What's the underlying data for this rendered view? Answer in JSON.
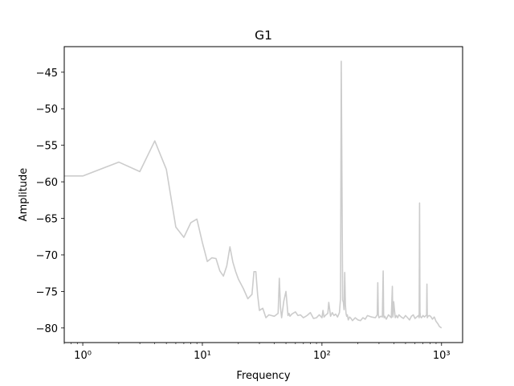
{
  "chart_data": {
    "type": "line",
    "title": "G1",
    "xlabel": "Frequency",
    "ylabel": "Amplitude",
    "xscale": "log",
    "xlim": [
      0.7,
      1500
    ],
    "ylim": [
      -82.0,
      -41.5
    ],
    "grid": false,
    "line_color": "#cccccc",
    "x_ticks": [
      {
        "value": 1,
        "label": "10⁰"
      },
      {
        "value": 10,
        "label": "10¹"
      },
      {
        "value": 100,
        "label": "10²"
      },
      {
        "value": 1000,
        "label": "10³"
      }
    ],
    "y_ticks": [
      {
        "value": -45,
        "label": "−45"
      },
      {
        "value": -50,
        "label": "−50"
      },
      {
        "value": -55,
        "label": "−55"
      },
      {
        "value": -60,
        "label": "−60"
      },
      {
        "value": -65,
        "label": "−65"
      },
      {
        "value": -70,
        "label": "−70"
      },
      {
        "value": -75,
        "label": "−75"
      },
      {
        "value": -80,
        "label": "−80"
      }
    ],
    "series": [
      {
        "name": "G1",
        "x": [
          0.7,
          1,
          2,
          3,
          4,
          5,
          6,
          7,
          8,
          9,
          10,
          11,
          12,
          13,
          14,
          15,
          16,
          17,
          18,
          19,
          20,
          22,
          24,
          26,
          27,
          28,
          29,
          30,
          32,
          34,
          36,
          40,
          43,
          44,
          45,
          46,
          48,
          50,
          52,
          53,
          54,
          56,
          60,
          63,
          66,
          70,
          75,
          80,
          85,
          90,
          95,
          100,
          102,
          104,
          108,
          112,
          114,
          118,
          122,
          126,
          130,
          135,
          140,
          143,
          145,
          147,
          149,
          151,
          153,
          155,
          157,
          159,
          161,
          163,
          166,
          170,
          175,
          180,
          190,
          200,
          210,
          220,
          230,
          240,
          260,
          280,
          290,
          293,
          296,
          300,
          310,
          320,
          325,
          328,
          331,
          335,
          345,
          360,
          380,
          388,
          391,
          394,
          398,
          410,
          420,
          425,
          430,
          440,
          460,
          480,
          500,
          520,
          540,
          560,
          580,
          600,
          620,
          640,
          650,
          655,
          660,
          665,
          670,
          680,
          700,
          720,
          740,
          750,
          755,
          760,
          770,
          790,
          810,
          840,
          870,
          900,
          930,
          960,
          1000
        ],
        "y": [
          -59.2,
          -59.2,
          -57.3,
          -58.6,
          -54.4,
          -58.3,
          -66.2,
          -67.6,
          -65.6,
          -65.1,
          -68.3,
          -70.9,
          -70.4,
          -70.5,
          -72.2,
          -72.9,
          -71.5,
          -68.9,
          -71.0,
          -72.3,
          -73.3,
          -74.6,
          -76.0,
          -75.4,
          -72.3,
          -72.3,
          -75.5,
          -77.6,
          -77.3,
          -78.6,
          -78.2,
          -78.4,
          -78.0,
          -73.2,
          -77.2,
          -78.6,
          -76.3,
          -75.0,
          -78.3,
          -78.0,
          -78.4,
          -78.1,
          -77.8,
          -78.3,
          -78.2,
          -78.6,
          -78.3,
          -77.9,
          -78.7,
          -78.6,
          -78.2,
          -78.6,
          -77.6,
          -78.5,
          -78.2,
          -78.0,
          -76.5,
          -78.4,
          -77.9,
          -78.3,
          -78.1,
          -78.5,
          -77.9,
          -76.0,
          -43.5,
          -60.0,
          -76.2,
          -76.5,
          -77.5,
          -72.4,
          -76.8,
          -78.0,
          -78.4,
          -78.2,
          -78.9,
          -78.5,
          -78.7,
          -79.0,
          -78.6,
          -78.9,
          -79.0,
          -78.6,
          -78.8,
          -78.3,
          -78.5,
          -78.6,
          -78.2,
          -73.8,
          -78.2,
          -78.6,
          -78.4,
          -78.5,
          -72.2,
          -78.3,
          -78.6,
          -78.4,
          -78.8,
          -78.2,
          -78.6,
          -74.3,
          -78.5,
          -78.2,
          -76.4,
          -78.6,
          -78.3,
          -78.5,
          -78.6,
          -78.2,
          -78.5,
          -78.7,
          -78.3,
          -78.6,
          -78.9,
          -78.4,
          -78.2,
          -78.7,
          -78.5,
          -78.3,
          -78.6,
          -62.9,
          -77.8,
          -78.4,
          -78.5,
          -78.6,
          -78.3,
          -78.5,
          -78.3,
          -78.2,
          -74.0,
          -78.6,
          -78.4,
          -78.3,
          -78.4,
          -78.8,
          -78.5,
          -79.1,
          -79.4,
          -79.8,
          -80.0
        ]
      }
    ]
  }
}
